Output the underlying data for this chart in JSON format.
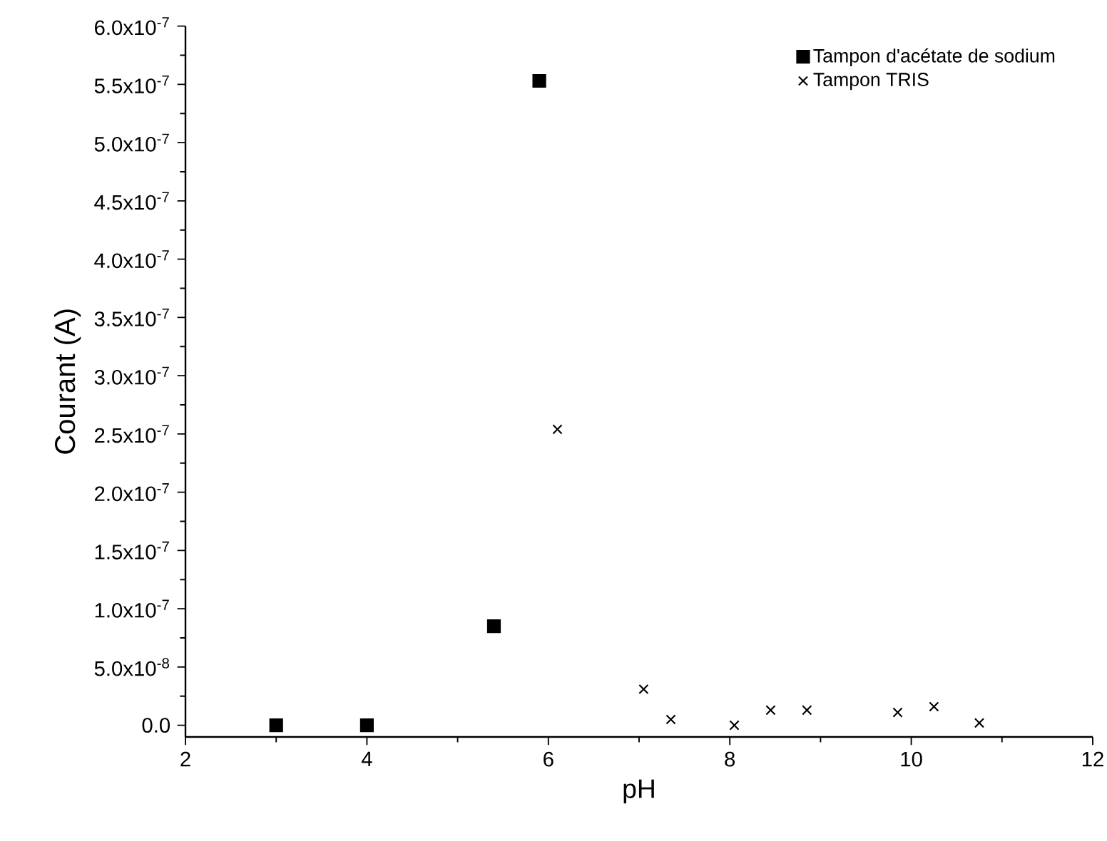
{
  "chart_data": {
    "type": "scatter",
    "xlabel": "pH",
    "ylabel": "Courant (A)",
    "xlim": [
      2,
      12
    ],
    "ylim": [
      -1e-08,
      6e-07
    ],
    "xticks": [
      2,
      4,
      6,
      8,
      10,
      12
    ],
    "yticks": [
      {
        "value": 0,
        "label": "0.0"
      },
      {
        "value": 5e-08,
        "label": "5.0x10$^{-8}$"
      },
      {
        "value": 1e-07,
        "label": "1.0x10$^{-7}$"
      },
      {
        "value": 1.5e-07,
        "label": "1.5x10$^{-7}$"
      },
      {
        "value": 2e-07,
        "label": "2.0x10$^{-7}$"
      },
      {
        "value": 2.5e-07,
        "label": "2.5x10$^{-7}$"
      },
      {
        "value": 3e-07,
        "label": "3.0x10$^{-7}$"
      },
      {
        "value": 3.5e-07,
        "label": "3.5x10$^{-7}$"
      },
      {
        "value": 4e-07,
        "label": "4.0x10$^{-7}$"
      },
      {
        "value": 4.5e-07,
        "label": "4.5x10$^{-7}$"
      },
      {
        "value": 5e-07,
        "label": "5.0x10$^{-7}$"
      },
      {
        "value": 5.5e-07,
        "label": "5.5x10$^{-7}$"
      },
      {
        "value": 6e-07,
        "label": "6.0x10$^{-7}$"
      }
    ],
    "legend": "top right",
    "series": [
      {
        "name": "Tampon d'acétate de sodium",
        "color": "#000000",
        "marker": "square",
        "x": [
          3,
          4,
          5.4,
          5.9
        ],
        "values": [
          0,
          0,
          8.5e-08,
          5.53e-07
        ]
      },
      {
        "name": "Tampon TRIS",
        "color": "#000000",
        "marker": "cross",
        "x": [
          6.1,
          7.05,
          7.35,
          8.05,
          8.45,
          8.85,
          9.85,
          10.25,
          10.75
        ],
        "values": [
          2.54e-07,
          3.1e-08,
          5e-09,
          0,
          1.3e-08,
          1.3e-08,
          1.1e-08,
          1.6e-08,
          2e-09
        ]
      }
    ]
  }
}
